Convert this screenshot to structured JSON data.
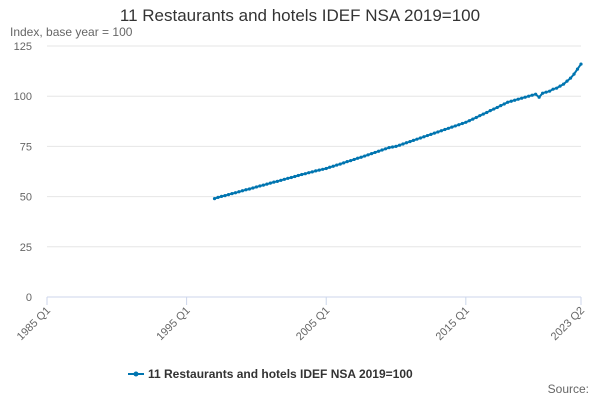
{
  "chart_data": {
    "type": "line",
    "title": "11 Restaurants and hotels IDEF NSA 2019=100",
    "y_label": "Index, base year = 100",
    "source": "Source:",
    "x": [
      1997,
      1997.25,
      1997.5,
      1997.75,
      1998,
      1998.25,
      1998.5,
      1998.75,
      1999,
      1999.25,
      1999.5,
      1999.75,
      2000,
      2000.25,
      2000.5,
      2000.75,
      2001,
      2001.25,
      2001.5,
      2001.75,
      2002,
      2002.25,
      2002.5,
      2002.75,
      2003,
      2003.25,
      2003.5,
      2003.75,
      2004,
      2004.25,
      2004.5,
      2004.75,
      2005,
      2005.25,
      2005.5,
      2005.75,
      2006,
      2006.25,
      2006.5,
      2006.75,
      2007,
      2007.25,
      2007.5,
      2007.75,
      2008,
      2008.25,
      2008.5,
      2008.75,
      2009,
      2009.25,
      2009.5,
      2009.75,
      2010,
      2010.25,
      2010.5,
      2010.75,
      2011,
      2011.25,
      2011.5,
      2011.75,
      2012,
      2012.25,
      2012.5,
      2012.75,
      2013,
      2013.25,
      2013.5,
      2013.75,
      2014,
      2014.25,
      2014.5,
      2014.75,
      2015,
      2015.25,
      2015.5,
      2015.75,
      2016,
      2016.25,
      2016.5,
      2016.75,
      2017,
      2017.25,
      2017.5,
      2017.75,
      2018,
      2018.25,
      2018.5,
      2018.75,
      2019,
      2019.25,
      2019.5,
      2019.75,
      2020,
      2020.25,
      2020.5,
      2020.75,
      2021,
      2021.25,
      2021.5,
      2021.75,
      2022,
      2022.25,
      2022.5,
      2022.75,
      2023,
      2023.25
    ],
    "series": [
      {
        "name": "11 Restaurants and hotels IDEF NSA 2019=100",
        "color": "#0075b0",
        "values": [
          49.0,
          49.6,
          50.1,
          50.5,
          51.0,
          51.5,
          51.9,
          52.4,
          52.9,
          53.4,
          53.8,
          54.3,
          54.8,
          55.3,
          55.7,
          56.2,
          56.7,
          57.2,
          57.6,
          58.1,
          58.6,
          59.1,
          59.5,
          60.0,
          60.5,
          61.0,
          61.4,
          61.9,
          62.3,
          62.8,
          63.2,
          63.6,
          64.0,
          64.6,
          65.1,
          65.7,
          66.2,
          66.8,
          67.4,
          67.9,
          68.5,
          69.1,
          69.6,
          70.2,
          70.8,
          71.4,
          72.0,
          72.6,
          73.2,
          73.8,
          74.4,
          74.7,
          75.0,
          75.6,
          76.2,
          76.8,
          77.4,
          78.0,
          78.6,
          79.2,
          79.8,
          80.4,
          81.0,
          81.6,
          82.2,
          82.8,
          83.4,
          84.0,
          84.6,
          85.2,
          85.8,
          86.4,
          87.0,
          87.8,
          88.6,
          89.4,
          90.3,
          91.1,
          91.9,
          92.8,
          93.6,
          94.4,
          95.3,
          96.1,
          97.0,
          97.5,
          98.0,
          98.5,
          99.0,
          99.5,
          100.0,
          100.5,
          101.0,
          99.5,
          101.5,
          102.0,
          102.5,
          103.5,
          104.0,
          105.0,
          106.0,
          107.5,
          109.0,
          111.0,
          113.5,
          116.0
        ]
      }
    ],
    "xlim": [
      1985,
      2023.25
    ],
    "xticks": [
      {
        "value": 1985,
        "label": "1985 Q1"
      },
      {
        "value": 1995,
        "label": "1995 Q1"
      },
      {
        "value": 2005,
        "label": "2005 Q1"
      },
      {
        "value": 2015,
        "label": "2015 Q1"
      },
      {
        "value": 2023.25,
        "label": "2023 Q2"
      }
    ],
    "ylim": [
      0,
      125
    ],
    "yticks": [
      0,
      25,
      50,
      75,
      100,
      125
    ],
    "grid": true,
    "legend": "bottom"
  }
}
